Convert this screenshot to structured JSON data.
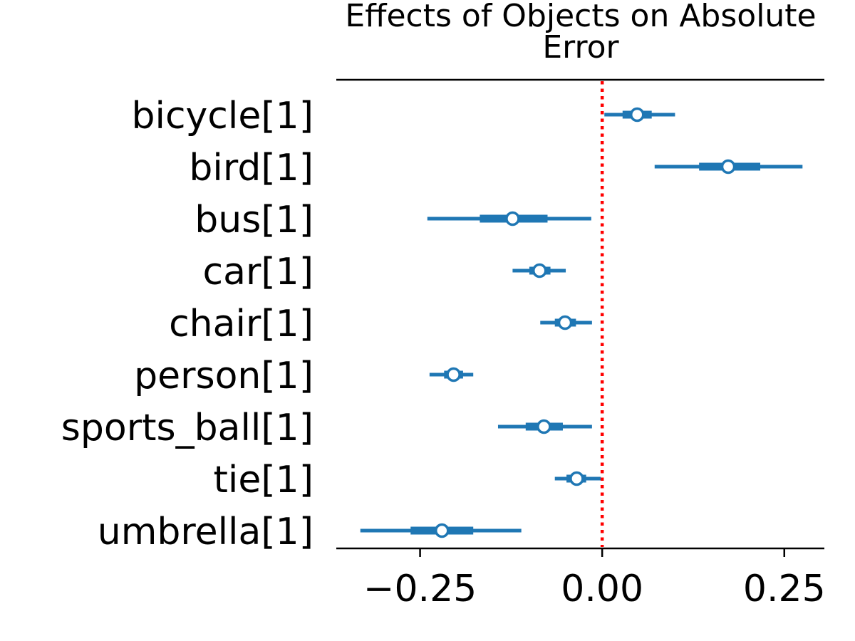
{
  "chart_data": {
    "type": "forest",
    "title": "Effects of Objects on Absolute Error",
    "title_lines": [
      "Effects of Objects on Absolute",
      "Error"
    ],
    "xlim": [
      -0.365,
      0.305
    ],
    "xticks": [
      -0.25,
      0.0,
      0.25
    ],
    "xtick_labels": [
      "−0.25",
      "0.00",
      "0.25"
    ],
    "reference_line": {
      "x": 0.0,
      "style": "dotted",
      "color": "#ff0000"
    },
    "color": "#1f77b4",
    "rows": [
      {
        "label": "bicycle[1]",
        "mean": 0.048,
        "hdi_outer": [
          0.003,
          0.1
        ],
        "hdi_inner": [
          0.028,
          0.068
        ]
      },
      {
        "label": "bird[1]",
        "mean": 0.173,
        "hdi_outer": [
          0.072,
          0.275
        ],
        "hdi_inner": [
          0.133,
          0.217
        ]
      },
      {
        "label": "bus[1]",
        "mean": -0.123,
        "hdi_outer": [
          -0.24,
          -0.015
        ],
        "hdi_inner": [
          -0.168,
          -0.075
        ]
      },
      {
        "label": "car[1]",
        "mean": -0.086,
        "hdi_outer": [
          -0.123,
          -0.05
        ],
        "hdi_inner": [
          -0.1,
          -0.071
        ]
      },
      {
        "label": "chair[1]",
        "mean": -0.051,
        "hdi_outer": [
          -0.085,
          -0.014
        ],
        "hdi_inner": [
          -0.065,
          -0.036
        ]
      },
      {
        "label": "person[1]",
        "mean": -0.204,
        "hdi_outer": [
          -0.237,
          -0.177
        ],
        "hdi_inner": [
          -0.217,
          -0.191
        ]
      },
      {
        "label": "sports_ball[1]",
        "mean": -0.08,
        "hdi_outer": [
          -0.143,
          -0.014
        ],
        "hdi_inner": [
          -0.105,
          -0.054
        ]
      },
      {
        "label": "tie[1]",
        "mean": -0.035,
        "hdi_outer": [
          -0.065,
          -0.002
        ],
        "hdi_inner": [
          -0.049,
          -0.022
        ]
      },
      {
        "label": "umbrella[1]",
        "mean": -0.22,
        "hdi_outer": [
          -0.332,
          -0.111
        ],
        "hdi_inner": [
          -0.263,
          -0.177
        ]
      }
    ]
  }
}
